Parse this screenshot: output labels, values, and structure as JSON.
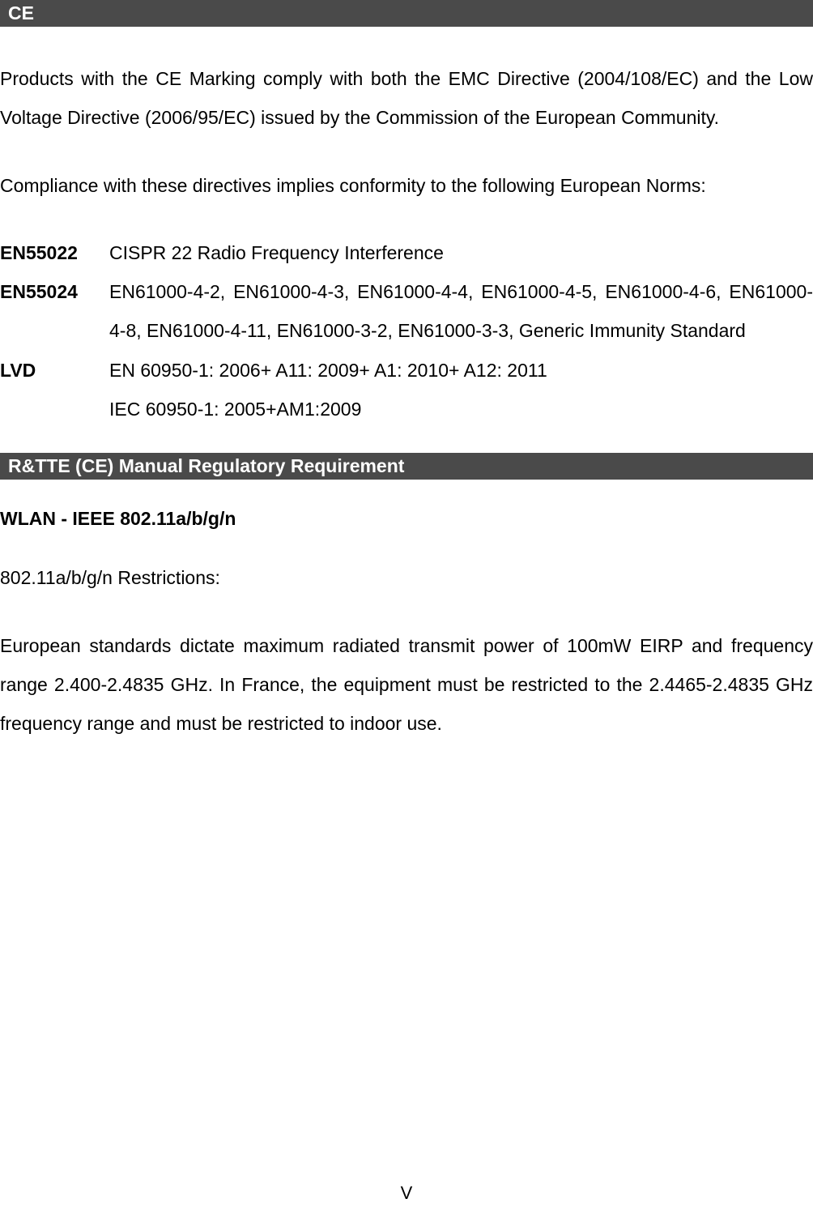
{
  "sections": {
    "ce": {
      "header": " CE",
      "paragraph1": "Products with the CE Marking comply with both the EMC Directive (2004/108/EC) and the Low Voltage Directive (2006/95/EC) issued by the Commission of the European Community.",
      "paragraph2": "Compliance with these directives implies conformity to the following European Norms:",
      "standards": {
        "en55022": {
          "label": "EN55022",
          "value": "CISPR 22 Radio Frequency Interference"
        },
        "en55024": {
          "label": "EN55024",
          "value": "EN61000-4-2, EN61000-4-3, EN61000-4-4, EN61000-4-5, EN61000-4-6, EN61000-4-8, EN61000-4-11, EN61000-3-2, EN61000-3-3, Generic Immunity Standard"
        },
        "lvd": {
          "label": "LVD",
          "value1": "EN 60950-1: 2006+ A11: 2009+ A1: 2010+ A12: 2011",
          "value2": "IEC 60950-1: 2005+AM1:2009"
        }
      }
    },
    "rtte": {
      "header": " R&TTE (CE) Manual Regulatory Requirement",
      "wlan_heading": "WLAN - IEEE 802.11a/b/g/n",
      "restrictions_heading": "802.11a/b/g/n Restrictions:",
      "paragraph": "European standards dictate maximum radiated transmit power of 100mW EIRP and frequency range 2.400-2.4835 GHz. In France, the equipment must be restricted to the 2.4465-2.4835 GHz frequency range and must be restricted to indoor use."
    }
  },
  "page_number": "V",
  "colors": {
    "header_bg": "#4a4a4a",
    "header_text": "#ffffff",
    "body_text": "#000000",
    "background": "#ffffff"
  },
  "typography": {
    "body_fontsize": 23,
    "header_fontsize": 23,
    "line_height": 2.1
  }
}
